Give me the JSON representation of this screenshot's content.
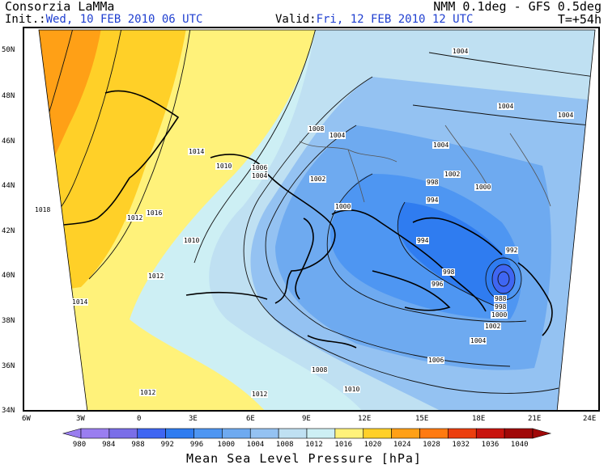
{
  "header": {
    "org": "Consorzia LaMMa",
    "model": "NMM 0.1deg - GFS 0.5deg",
    "init_prefix": "Init.:",
    "init_value": "Wed, 10 FEB 2010  06 UTC",
    "valid_prefix": "Valid:",
    "valid_value": "Fri, 12 FEB 2010  12 UTC",
    "lead": "T=+54h"
  },
  "axes": {
    "lat_labels": [
      "50N",
      "48N",
      "46N",
      "44N",
      "42N",
      "40N",
      "38N",
      "36N",
      "34N"
    ],
    "lon_labels": [
      "6W",
      "3W",
      "0",
      "3E",
      "6E",
      "9E",
      "12E",
      "15E",
      "18E",
      "21E",
      "24E"
    ]
  },
  "isobar_labels": [
    {
      "text": "1004"
    },
    {
      "text": "1004"
    },
    {
      "text": "1004"
    },
    {
      "text": "1004"
    },
    {
      "text": "1008"
    },
    {
      "text": "1004"
    },
    {
      "text": "1014"
    },
    {
      "text": "1010"
    },
    {
      "text": "1006"
    },
    {
      "text": "1004"
    },
    {
      "text": "1002"
    },
    {
      "text": "1002"
    },
    {
      "text": "1000"
    },
    {
      "text": "1018"
    },
    {
      "text": "1016"
    },
    {
      "text": "1012"
    },
    {
      "text": "1010"
    },
    {
      "text": "1000"
    },
    {
      "text": "998"
    },
    {
      "text": "994"
    },
    {
      "text": "994"
    },
    {
      "text": "1012"
    },
    {
      "text": "996"
    },
    {
      "text": "998"
    },
    {
      "text": "992"
    },
    {
      "text": "988"
    },
    {
      "text": "998"
    },
    {
      "text": "1000"
    },
    {
      "text": "1014"
    },
    {
      "text": "1002"
    },
    {
      "text": "1004"
    },
    {
      "text": "1006"
    },
    {
      "text": "1008"
    },
    {
      "text": "1012"
    },
    {
      "text": "1012"
    },
    {
      "text": "1010"
    }
  ],
  "colorbar": {
    "title": "Mean Sea Level Pressure [hPa]",
    "levels": [
      "980",
      "984",
      "988",
      "992",
      "996",
      "1000",
      "1004",
      "1008",
      "1012",
      "1016",
      "1020",
      "1024",
      "1028",
      "1032",
      "1036",
      "1040"
    ],
    "colors": [
      "#9a7ef0",
      "#7a6ee8",
      "#3f66f2",
      "#2f7cf0",
      "#4e96f2",
      "#6eaaf0",
      "#94c2f2",
      "#bfe0f2",
      "#cdeff4",
      "#fff27a",
      "#ffd028",
      "#ffa016",
      "#ff7a10",
      "#ec3e0e",
      "#c8140e",
      "#a00808"
    ]
  },
  "field_colors": {
    "c988": "#3f66f2",
    "c994": "#2f7cf0",
    "c998": "#4e96f2",
    "c1002": "#6eaaf0",
    "c1006": "#94c2f2",
    "c1010": "#bfe0f2",
    "c1012": "#cdeff4",
    "c1016": "#fff27a",
    "c1020": "#ffd028",
    "c1024": "#ffa016"
  }
}
